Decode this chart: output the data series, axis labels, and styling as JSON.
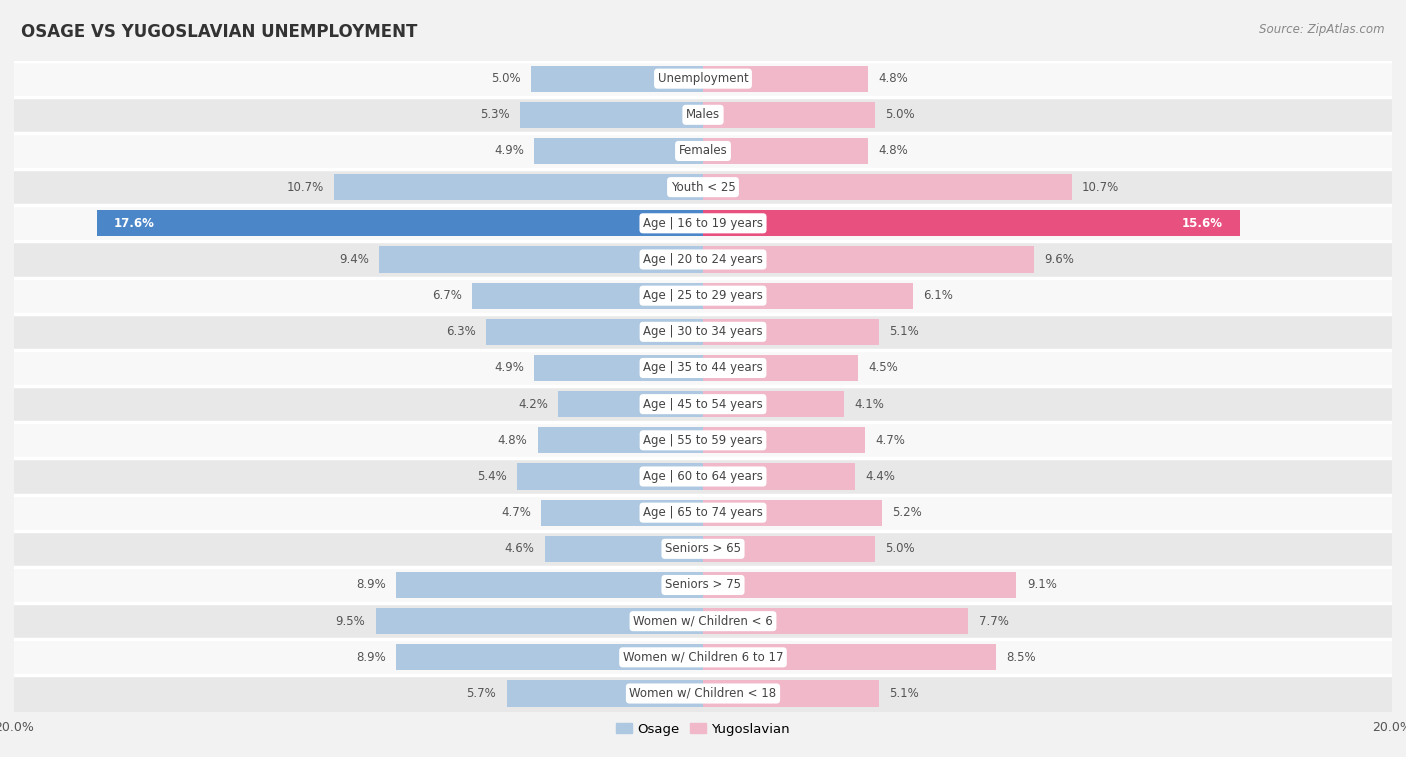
{
  "title": "OSAGE VS YUGOSLAVIAN UNEMPLOYMENT",
  "source": "Source: ZipAtlas.com",
  "categories": [
    "Unemployment",
    "Males",
    "Females",
    "Youth < 25",
    "Age | 16 to 19 years",
    "Age | 20 to 24 years",
    "Age | 25 to 29 years",
    "Age | 30 to 34 years",
    "Age | 35 to 44 years",
    "Age | 45 to 54 years",
    "Age | 55 to 59 years",
    "Age | 60 to 64 years",
    "Age | 65 to 74 years",
    "Seniors > 65",
    "Seniors > 75",
    "Women w/ Children < 6",
    "Women w/ Children 6 to 17",
    "Women w/ Children < 18"
  ],
  "osage": [
    5.0,
    5.3,
    4.9,
    10.7,
    17.6,
    9.4,
    6.7,
    6.3,
    4.9,
    4.2,
    4.8,
    5.4,
    4.7,
    4.6,
    8.9,
    9.5,
    8.9,
    5.7
  ],
  "yugoslavian": [
    4.8,
    5.0,
    4.8,
    10.7,
    15.6,
    9.6,
    6.1,
    5.1,
    4.5,
    4.1,
    4.7,
    4.4,
    5.2,
    5.0,
    9.1,
    7.7,
    8.5,
    5.1
  ],
  "osage_color": "#adc8e0",
  "yugoslavian_color": "#f0b8c8",
  "osage_highlight_color": "#4a86c8",
  "yugoslavian_highlight_color": "#e85080",
  "highlight_index": 4,
  "xlim": 20.0,
  "background_color": "#f2f2f2",
  "row_color_light": "#f8f8f8",
  "row_color_dark": "#e8e8e8",
  "separator_color": "#ffffff",
  "label_color": "#555555",
  "legend_osage": "Osage",
  "legend_yugoslavian": "Yugoslavian"
}
